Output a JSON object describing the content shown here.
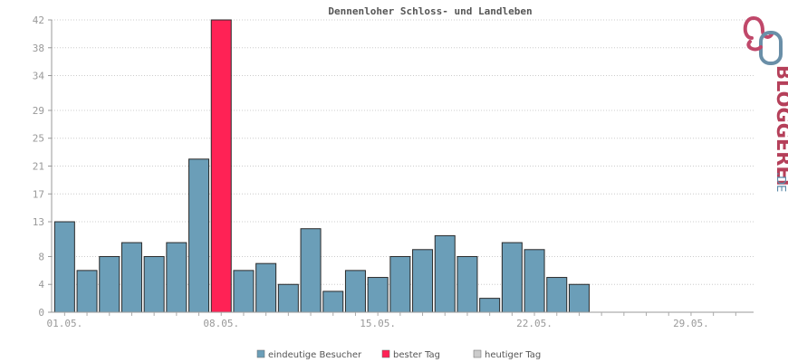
{
  "chart_data": {
    "type": "bar",
    "title": "Dennenloher Schloss- und Landleben",
    "y_ticks": [
      "0",
      "4",
      "8",
      "13",
      "17",
      "21",
      "25",
      "29",
      "34",
      "38",
      "42"
    ],
    "ylim": [
      0,
      42
    ],
    "x_tick_labels": [
      "01.05.",
      "08.05.",
      "15.05.",
      "22.05.",
      "29.05."
    ],
    "x_tick_days": [
      1,
      8,
      15,
      22,
      29
    ],
    "days": [
      1,
      2,
      3,
      4,
      5,
      6,
      7,
      8,
      9,
      10,
      11,
      12,
      13,
      14,
      15,
      16,
      17,
      18,
      19,
      20,
      21,
      22,
      23,
      24
    ],
    "values": [
      13,
      6,
      8,
      10,
      8,
      10,
      22,
      42,
      6,
      7,
      4,
      12,
      3,
      6,
      5,
      8,
      9,
      11,
      8,
      2,
      10,
      9,
      5,
      4
    ],
    "best_day": 8,
    "total_days": 31,
    "grid": true,
    "legend_position": "bottom",
    "legend": [
      {
        "label": "eindeutige Besucher",
        "color": "#6b9eb8"
      },
      {
        "label": "bester Tag",
        "color": "#ff2255"
      },
      {
        "label": "heutiger Tag",
        "color": "#cccccc"
      }
    ]
  },
  "brand": {
    "text_main": "BLOGGEREI",
    "text_suffix": ".DE",
    "color_main": "#b5405a",
    "color_accent": "#5a8aa8"
  }
}
